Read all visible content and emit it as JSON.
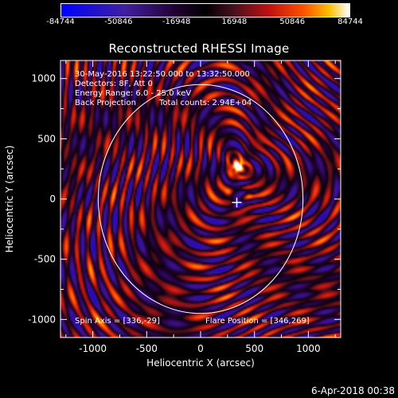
{
  "colorbar": {
    "ticks": [
      "-84744",
      "-50846",
      "-16948",
      "16948",
      "50846",
      "84744"
    ],
    "min": -84744,
    "max": 84744
  },
  "info": {
    "time_range": "30-May-2016 13:22:50.000 to 13:32:50.000",
    "detectors": "Detectors: 8F, Att 0",
    "energy": "Energy Range: 6.0 - 25.0 keV",
    "method": "Back Projection",
    "counts": "Total counts: 2.94E+04",
    "spin_axis": "Spin Axis = [336,-29]",
    "flare_position": "Flare Position = [346,269]"
  },
  "timestamp": "6-Apr-2018 00:38",
  "chart_data": {
    "type": "heatmap",
    "title": "Reconstructed RHESSI Image",
    "xlabel": "Heliocentric X (arcsec)",
    "ylabel": "Heliocentric Y (arcsec)",
    "xlim": [
      -1300,
      1300
    ],
    "ylim": [
      -1150,
      1150
    ],
    "x_ticks": [
      -1000,
      -500,
      0,
      500,
      1000
    ],
    "y_ticks": [
      -1000,
      -500,
      0,
      500,
      1000
    ],
    "x_tick_labels": [
      "-1000",
      "-500",
      "0",
      "500",
      "1000"
    ],
    "y_tick_labels": [
      "-1000",
      "-500",
      "0",
      "500",
      "1000"
    ],
    "solar_limb_radius_arcsec": 950,
    "spin_axis": [
      336,
      -29
    ],
    "flare_position": [
      346,
      269
    ],
    "sources": [
      {
        "x": 346,
        "y": 269,
        "level": "peak"
      },
      {
        "x": 260,
        "y": 50,
        "level": "high"
      },
      {
        "x": 440,
        "y": 40,
        "level": "high"
      }
    ],
    "colormap": [
      "#0000ff",
      "#200030",
      "#000000",
      "#c01010",
      "#ff5000",
      "#ffc000",
      "#ffffff"
    ]
  }
}
